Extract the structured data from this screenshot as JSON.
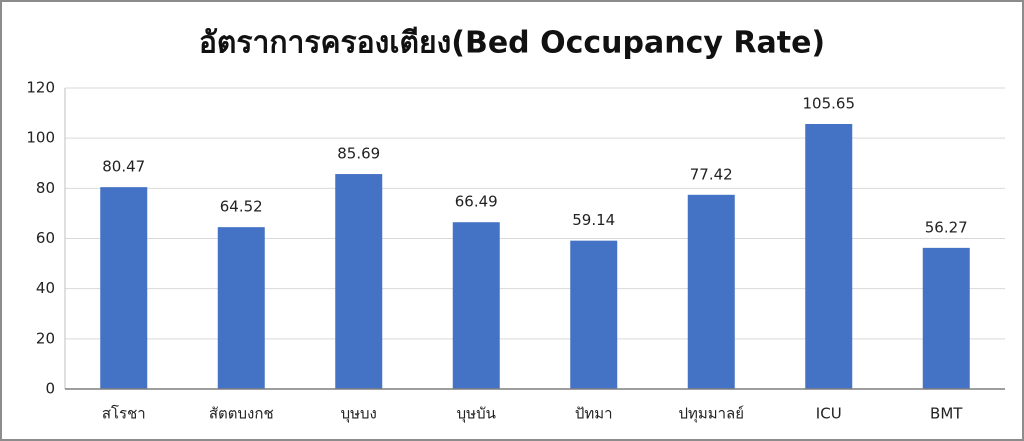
{
  "chart_data": {
    "type": "bar",
    "title": "อัตราการครองเตียง(Bed Occupancy Rate)",
    "categories": [
      "สโรชา",
      "สัตตบงกช",
      "บุษบง",
      "บุษบัน",
      "ปัทมา",
      "ปทุมมาลย์",
      "ICU",
      "BMT"
    ],
    "values": [
      80.47,
      64.52,
      85.69,
      66.49,
      59.14,
      77.42,
      105.65,
      56.27
    ],
    "color": "#4472c4",
    "ylim": [
      0,
      120
    ],
    "yticks": [
      0,
      20,
      40,
      60,
      80,
      100,
      120
    ],
    "grid": true
  }
}
